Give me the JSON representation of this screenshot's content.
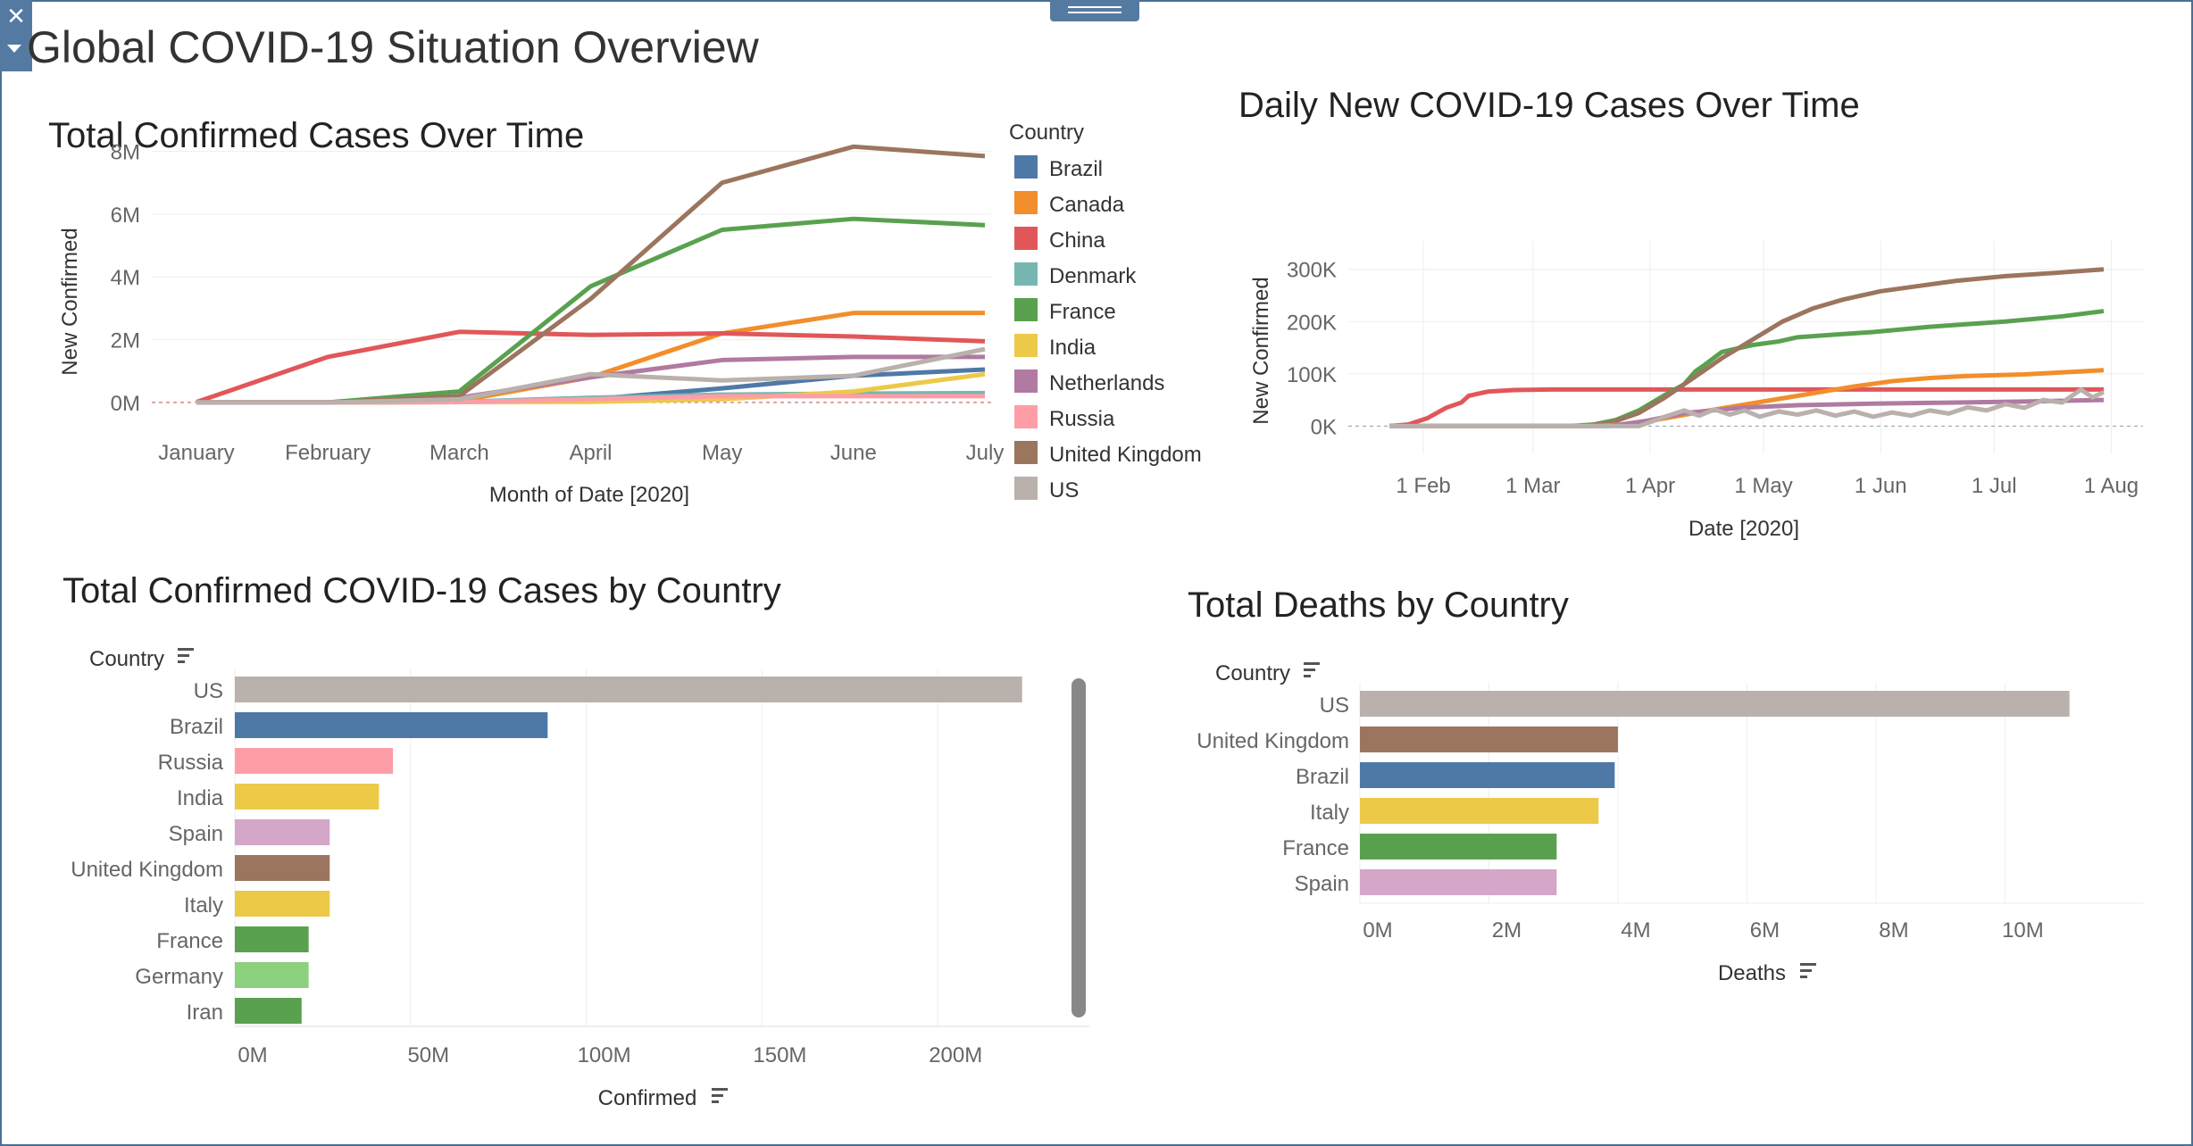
{
  "dashboard_title": "Global COVID-19 Situation Overview",
  "colors": {
    "Brazil": "#4e79a7",
    "Canada": "#f28e2b",
    "China": "#e15759",
    "Denmark": "#76b7b2",
    "France": "#59a14f",
    "India": "#edc948",
    "Netherlands": "#b07aa1",
    "Russia": "#ff9da7",
    "United Kingdom": "#9c755f",
    "US": "#bab0ac",
    "Spain": "#d4a6c8",
    "Italy": "#edc948",
    "Germany": "#8cd17d",
    "Iran": "#59a14f",
    "frame": "#4a6f95"
  },
  "icons": {
    "close": "close-icon",
    "dropdown": "dropdown-arrow-icon",
    "drag": "drag-handle-icon",
    "sort": "sort-descending-icon"
  },
  "chart_data": [
    {
      "type": "line",
      "title": "Total Confirmed Cases Over Time",
      "xlabel": "Month of Date [2020]",
      "ylabel": "New Confirmed",
      "categories": [
        "January",
        "February",
        "March",
        "April",
        "May",
        "June",
        "July"
      ],
      "y_ticks": [
        "0M",
        "2M",
        "4M",
        "6M",
        "8M"
      ],
      "ylim": [
        -0.6,
        8.5
      ],
      "units": "millions",
      "legend_title": "Country",
      "legend_position": "right",
      "legend": [
        "Brazil",
        "Canada",
        "China",
        "Denmark",
        "France",
        "India",
        "Netherlands",
        "Russia",
        "United Kingdom",
        "US"
      ],
      "series": [
        {
          "name": "Brazil",
          "values": [
            0,
            0,
            0.01,
            0.1,
            0.45,
            0.85,
            1.05
          ]
        },
        {
          "name": "Canada",
          "values": [
            0,
            0,
            0.05,
            0.8,
            2.2,
            2.85,
            2.85
          ]
        },
        {
          "name": "China",
          "values": [
            0.01,
            1.45,
            2.25,
            2.15,
            2.2,
            2.1,
            1.95
          ]
        },
        {
          "name": "Denmark",
          "values": [
            0,
            0,
            0.02,
            0.15,
            0.25,
            0.28,
            0.3
          ]
        },
        {
          "name": "France",
          "values": [
            0,
            0,
            0.35,
            3.7,
            5.5,
            5.85,
            5.65
          ]
        },
        {
          "name": "India",
          "values": [
            0,
            0,
            0.01,
            0.02,
            0.1,
            0.35,
            0.9
          ]
        },
        {
          "name": "Netherlands",
          "values": [
            0,
            0,
            0.15,
            0.8,
            1.35,
            1.45,
            1.45
          ]
        },
        {
          "name": "Russia",
          "values": [
            0,
            0,
            0.01,
            0.1,
            0.2,
            0.2,
            0.2
          ]
        },
        {
          "name": "United Kingdom",
          "values": [
            0,
            0,
            0.2,
            3.3,
            7.0,
            8.15,
            7.85
          ]
        },
        {
          "name": "US",
          "values": [
            0,
            0,
            0.1,
            0.9,
            0.7,
            0.85,
            1.7
          ]
        }
      ]
    },
    {
      "type": "line",
      "title": "Daily New COVID-19 Cases Over Time",
      "xlabel": "Date [2020]",
      "ylabel": "New Confirmed",
      "x_ticks": [
        "1 Feb",
        "1 Mar",
        "1 Apr",
        "1 May",
        "1 Jun",
        "1 Jul",
        "1 Aug"
      ],
      "x_tick_days": [
        31,
        60,
        91,
        121,
        152,
        182,
        213
      ],
      "xlim": [
        22,
        211
      ],
      "y_ticks": [
        "0K",
        "100K",
        "200K",
        "300K"
      ],
      "ylim": [
        -30,
        320
      ],
      "units": "thousands",
      "x_unit": "day of year 2020",
      "series": [
        {
          "name": "China",
          "points": [
            [
              22,
              0
            ],
            [
              27,
              3
            ],
            [
              32,
              15
            ],
            [
              37,
              35
            ],
            [
              41,
              45
            ],
            [
              43,
              58
            ],
            [
              48,
              66
            ],
            [
              55,
              69
            ],
            [
              65,
              70
            ],
            [
              90,
              70
            ],
            [
              130,
              70
            ],
            [
              170,
              70
            ],
            [
              211,
              70
            ]
          ]
        },
        {
          "name": "France",
          "points": [
            [
              22,
              0
            ],
            [
              70,
              0
            ],
            [
              76,
              3
            ],
            [
              82,
              12
            ],
            [
              88,
              30
            ],
            [
              95,
              60
            ],
            [
              100,
              80
            ],
            [
              103,
              105
            ],
            [
              105,
              115
            ],
            [
              110,
              142
            ],
            [
              118,
              155
            ],
            [
              125,
              162
            ],
            [
              130,
              170
            ],
            [
              140,
              175
            ],
            [
              150,
              180
            ],
            [
              165,
              190
            ],
            [
              185,
              200
            ],
            [
              200,
              210
            ],
            [
              211,
              220
            ]
          ]
        },
        {
          "name": "United Kingdom",
          "points": [
            [
              22,
              0
            ],
            [
              72,
              0
            ],
            [
              80,
              5
            ],
            [
              88,
              25
            ],
            [
              95,
              55
            ],
            [
              102,
              90
            ],
            [
              110,
              130
            ],
            [
              118,
              165
            ],
            [
              126,
              200
            ],
            [
              134,
              225
            ],
            [
              142,
              242
            ],
            [
              152,
              258
            ],
            [
              162,
              268
            ],
            [
              172,
              278
            ],
            [
              185,
              287
            ],
            [
              198,
              293
            ],
            [
              211,
              300
            ]
          ]
        },
        {
          "name": "Canada",
          "points": [
            [
              22,
              0
            ],
            [
              75,
              0
            ],
            [
              85,
              3
            ],
            [
              95,
              15
            ],
            [
              105,
              28
            ],
            [
              115,
              40
            ],
            [
              125,
              52
            ],
            [
              135,
              64
            ],
            [
              145,
              76
            ],
            [
              155,
              86
            ],
            [
              165,
              92
            ],
            [
              175,
              96
            ],
            [
              190,
              99
            ],
            [
              211,
              107
            ]
          ]
        },
        {
          "name": "Netherlands",
          "points": [
            [
              22,
              0
            ],
            [
              80,
              0
            ],
            [
              90,
              10
            ],
            [
              100,
              25
            ],
            [
              115,
              35
            ],
            [
              130,
              40
            ],
            [
              150,
              43
            ],
            [
              170,
              45
            ],
            [
              190,
              47
            ],
            [
              211,
              50
            ]
          ]
        },
        {
          "name": "US",
          "points": [
            [
              22,
              0
            ],
            [
              88,
              0
            ],
            [
              95,
              18
            ],
            [
              100,
              30
            ],
            [
              104,
              20
            ],
            [
              108,
              32
            ],
            [
              112,
              22
            ],
            [
              116,
              30
            ],
            [
              120,
              18
            ],
            [
              125,
              28
            ],
            [
              130,
              22
            ],
            [
              135,
              30
            ],
            [
              140,
              20
            ],
            [
              145,
              28
            ],
            [
              150,
              18
            ],
            [
              155,
              26
            ],
            [
              160,
              20
            ],
            [
              165,
              30
            ],
            [
              170,
              24
            ],
            [
              175,
              36
            ],
            [
              180,
              30
            ],
            [
              185,
              42
            ],
            [
              190,
              35
            ],
            [
              195,
              50
            ],
            [
              200,
              45
            ],
            [
              205,
              70
            ],
            [
              208,
              55
            ],
            [
              211,
              65
            ]
          ]
        }
      ]
    },
    {
      "type": "bar",
      "orientation": "horizontal",
      "title": "Total Confirmed COVID-19 Cases by Country",
      "category_header": "Country",
      "xlabel": "Confirmed",
      "categories": [
        "US",
        "Brazil",
        "Russia",
        "India",
        "Spain",
        "United Kingdom",
        "Italy",
        "France",
        "Germany",
        "Iran"
      ],
      "values": [
        224,
        89,
        45,
        41,
        27,
        27,
        27,
        21,
        21,
        19
      ],
      "units": "millions",
      "x_ticks": [
        "0M",
        "50M",
        "100M",
        "150M",
        "200M"
      ],
      "xlim": [
        0,
        235
      ],
      "has_scrollbar": true
    },
    {
      "type": "bar",
      "orientation": "horizontal",
      "title": "Total Deaths by Country",
      "category_header": "Country",
      "xlabel": "Deaths",
      "categories": [
        "US",
        "United Kingdom",
        "Brazil",
        "Italy",
        "France",
        "Spain"
      ],
      "values": [
        11.0,
        4.0,
        3.95,
        3.7,
        3.05,
        3.05
      ],
      "units": "millions",
      "x_ticks": [
        "0M",
        "2M",
        "4M",
        "6M",
        "8M",
        "10M"
      ],
      "xlim": [
        0,
        11.6
      ]
    }
  ]
}
